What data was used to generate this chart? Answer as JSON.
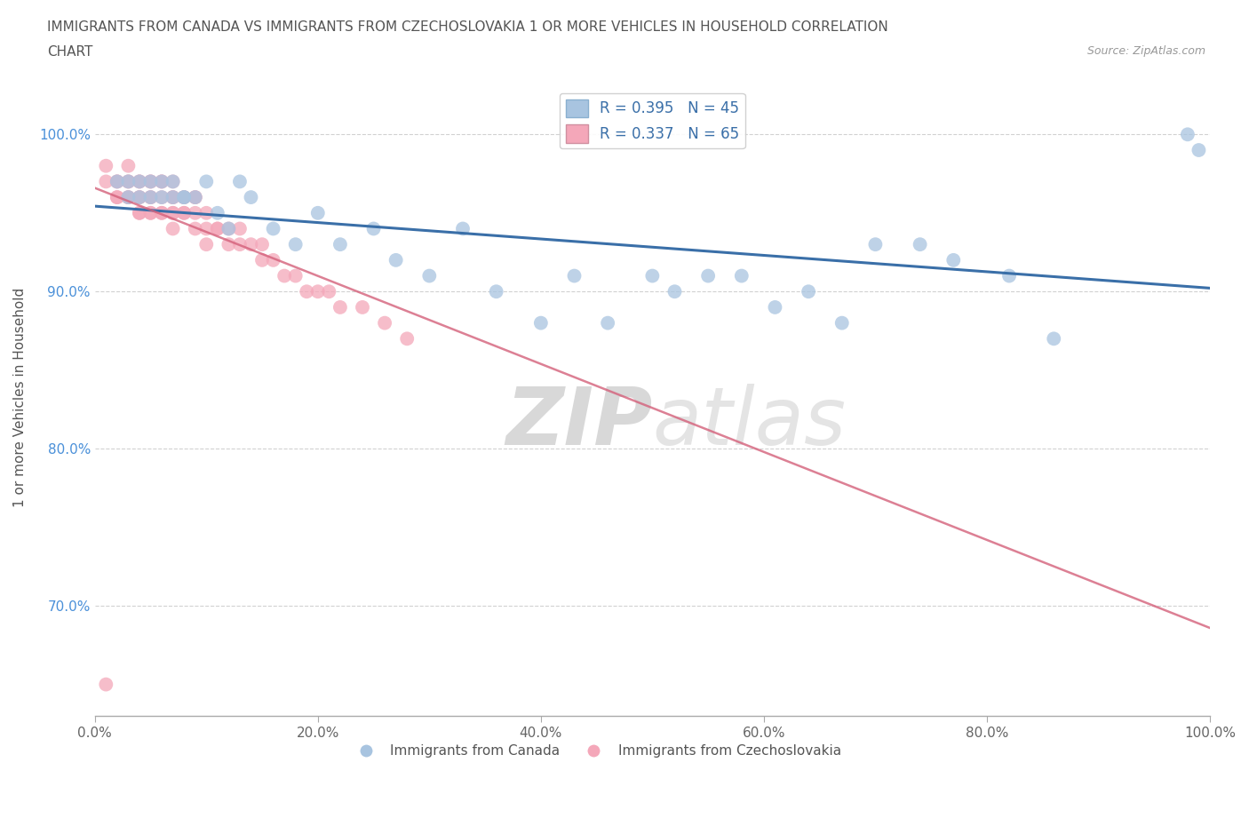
{
  "title_line1": "IMMIGRANTS FROM CANADA VS IMMIGRANTS FROM CZECHOSLOVAKIA 1 OR MORE VEHICLES IN HOUSEHOLD CORRELATION",
  "title_line2": "CHART",
  "source": "Source: ZipAtlas.com",
  "ylabel": "1 or more Vehicles in Household",
  "xlim": [
    0.0,
    1.0
  ],
  "ylim": [
    0.63,
    1.035
  ],
  "yticks": [
    0.7,
    0.8,
    0.9,
    1.0
  ],
  "ytick_labels": [
    "70.0%",
    "80.0%",
    "90.0%",
    "100.0%"
  ],
  "xtick_labels": [
    "0.0%",
    "20.0%",
    "40.0%",
    "60.0%",
    "80.0%",
    "100.0%"
  ],
  "xticks": [
    0.0,
    0.2,
    0.4,
    0.6,
    0.8,
    1.0
  ],
  "canada_color": "#a8c4e0",
  "czech_color": "#f4a7b9",
  "canada_R": 0.395,
  "canada_N": 45,
  "czech_R": 0.337,
  "czech_N": 65,
  "trend_color_canada": "#3a6fa8",
  "trend_color_czech": "#d4607a",
  "canada_x": [
    0.02,
    0.03,
    0.03,
    0.04,
    0.04,
    0.05,
    0.05,
    0.06,
    0.06,
    0.07,
    0.07,
    0.08,
    0.08,
    0.09,
    0.1,
    0.11,
    0.12,
    0.13,
    0.14,
    0.16,
    0.18,
    0.2,
    0.22,
    0.25,
    0.27,
    0.3,
    0.33,
    0.36,
    0.4,
    0.43,
    0.46,
    0.5,
    0.52,
    0.55,
    0.58,
    0.61,
    0.64,
    0.67,
    0.7,
    0.74,
    0.77,
    0.82,
    0.86,
    0.98,
    0.99
  ],
  "canada_y": [
    0.97,
    0.97,
    0.96,
    0.97,
    0.96,
    0.97,
    0.96,
    0.97,
    0.96,
    0.97,
    0.96,
    0.96,
    0.96,
    0.96,
    0.97,
    0.95,
    0.94,
    0.97,
    0.96,
    0.94,
    0.93,
    0.95,
    0.93,
    0.94,
    0.92,
    0.91,
    0.94,
    0.9,
    0.88,
    0.91,
    0.88,
    0.91,
    0.9,
    0.91,
    0.91,
    0.89,
    0.9,
    0.88,
    0.93,
    0.93,
    0.92,
    0.91,
    0.87,
    1.0,
    0.99
  ],
  "czech_x": [
    0.01,
    0.01,
    0.02,
    0.02,
    0.02,
    0.02,
    0.03,
    0.03,
    0.03,
    0.03,
    0.03,
    0.04,
    0.04,
    0.04,
    0.04,
    0.04,
    0.04,
    0.05,
    0.05,
    0.05,
    0.05,
    0.05,
    0.05,
    0.06,
    0.06,
    0.06,
    0.06,
    0.06,
    0.07,
    0.07,
    0.07,
    0.07,
    0.07,
    0.07,
    0.08,
    0.08,
    0.08,
    0.08,
    0.09,
    0.09,
    0.09,
    0.09,
    0.1,
    0.1,
    0.1,
    0.11,
    0.11,
    0.12,
    0.12,
    0.13,
    0.13,
    0.14,
    0.15,
    0.15,
    0.16,
    0.17,
    0.18,
    0.19,
    0.2,
    0.21,
    0.22,
    0.24,
    0.26,
    0.28,
    0.01
  ],
  "czech_y": [
    0.98,
    0.97,
    0.97,
    0.97,
    0.96,
    0.96,
    0.98,
    0.97,
    0.97,
    0.96,
    0.96,
    0.97,
    0.97,
    0.96,
    0.96,
    0.95,
    0.95,
    0.97,
    0.97,
    0.96,
    0.96,
    0.95,
    0.95,
    0.97,
    0.97,
    0.96,
    0.95,
    0.95,
    0.97,
    0.96,
    0.96,
    0.95,
    0.95,
    0.94,
    0.96,
    0.96,
    0.95,
    0.95,
    0.96,
    0.96,
    0.95,
    0.94,
    0.95,
    0.94,
    0.93,
    0.94,
    0.94,
    0.94,
    0.93,
    0.94,
    0.93,
    0.93,
    0.93,
    0.92,
    0.92,
    0.91,
    0.91,
    0.9,
    0.9,
    0.9,
    0.89,
    0.89,
    0.88,
    0.87,
    0.65
  ],
  "watermark_zip": "ZIP",
  "watermark_atlas": "atlas",
  "background_color": "#ffffff",
  "grid_color": "#cccccc"
}
